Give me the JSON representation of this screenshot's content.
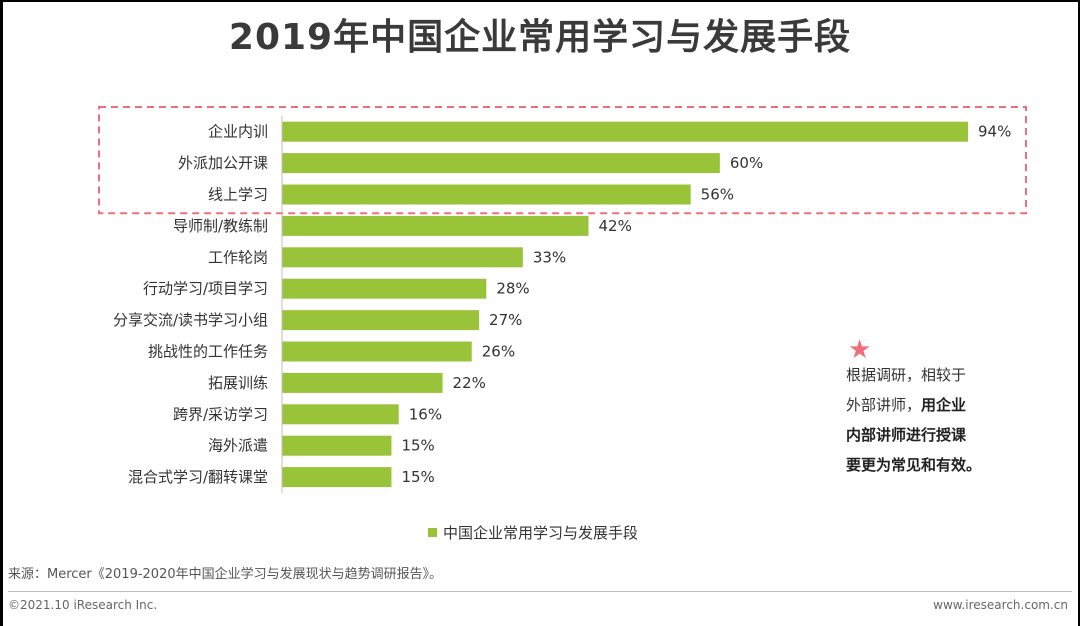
{
  "chart_data": {
    "type": "bar",
    "orientation": "horizontal",
    "title": "2019年中国企业常用学习与发展手段",
    "categories": [
      "企业内训",
      "外派加公开课",
      "线上学习",
      "导师制/教练制",
      "工作轮岗",
      "行动学习/项目学习",
      "分享交流/读书学习小组",
      "挑战性的工作任务",
      "拓展训练",
      "跨界/采访学习",
      "海外派遣",
      "混合式学习/翻转课堂"
    ],
    "values": [
      94,
      60,
      56,
      42,
      33,
      28,
      27,
      26,
      22,
      16,
      15,
      15
    ],
    "value_labels": [
      "94%",
      "60%",
      "56%",
      "42%",
      "33%",
      "28%",
      "27%",
      "26%",
      "22%",
      "16%",
      "15%",
      "15%"
    ],
    "unit": "%",
    "xlim": [
      0,
      100
    ],
    "series_name": "中国企业常用学习与发展手段",
    "highlighted_categories": [
      "企业内训",
      "外派加公开课",
      "线上学习"
    ],
    "bar_color": "#99c43a",
    "highlight_border_color": "#ee6e7a",
    "legend": "bottom-center"
  },
  "note": {
    "line1": "根据调研，相较于",
    "line2_normal": "外部讲师，",
    "line2_bold": "用企业",
    "line3": "内部讲师进行授课",
    "line4": "要更为常见和有效。",
    "star_color": "#ee6e7a"
  },
  "source": "来源：Mercer《2019-2020年中国企业学习与发展现状与趋势调研报告》。",
  "footer": {
    "copyright": "©2021.10 iResearch Inc.",
    "website": "www.iresearch.com.cn"
  }
}
